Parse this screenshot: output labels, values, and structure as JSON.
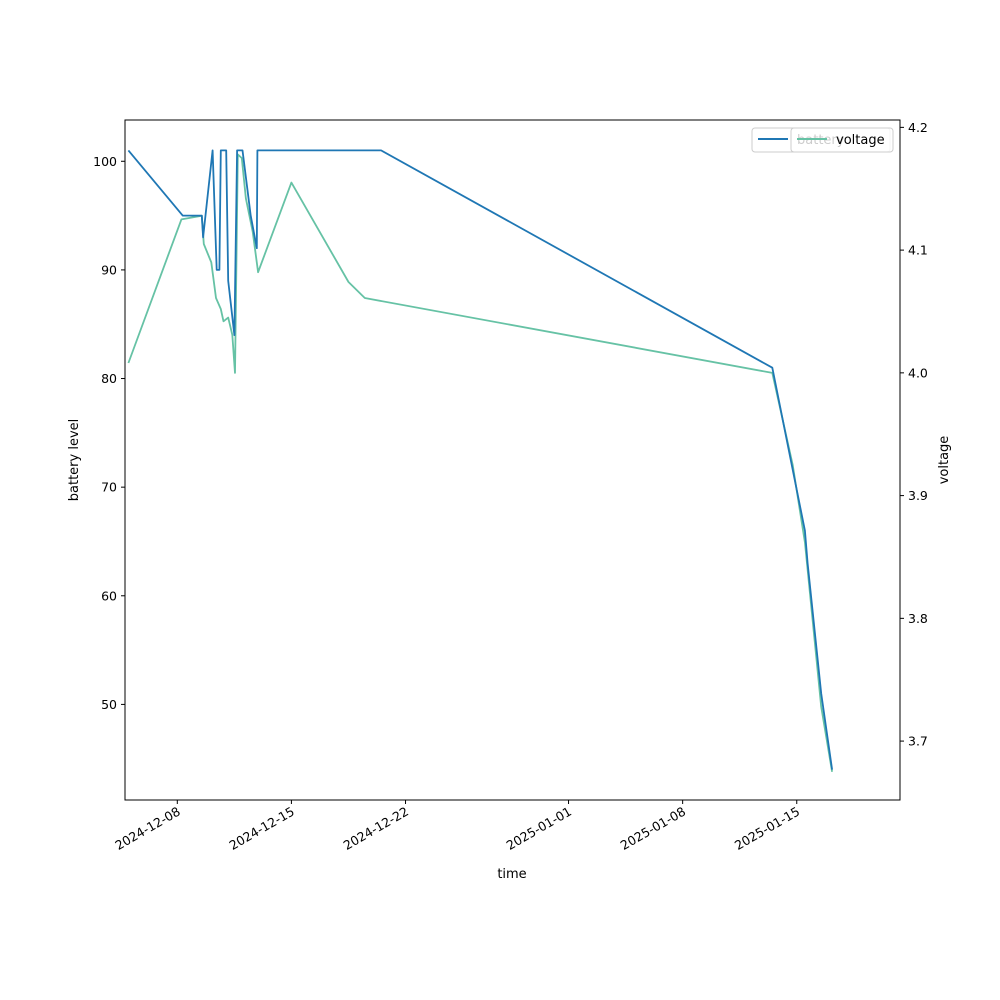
{
  "chart_data": {
    "type": "line",
    "xlabel": "time",
    "ylabel": "battery level",
    "y2label": "voltage",
    "x_ticks": [
      "2024-12-08",
      "2024-12-15",
      "2024-12-22",
      "2025-01-01",
      "2025-01-08",
      "2025-01-15"
    ],
    "y_ticks": [
      50,
      60,
      70,
      80,
      90,
      100
    ],
    "y2_ticks": [
      "3.7",
      "3.8",
      "3.9",
      "4.0",
      "4.1",
      "4.2"
    ],
    "xlim": [
      "2024-12-04T19:00",
      "2025-01-21T08:00"
    ],
    "ylim": [
      41.2,
      103.8
    ],
    "y2lim": [
      3.652,
      4.206
    ],
    "grid": false,
    "legends": [
      {
        "labels": [
          "battery"
        ],
        "colors": [
          "#1f77b4"
        ],
        "placement": "upper right"
      },
      {
        "labels": [
          "voltage"
        ],
        "colors": [
          "#66c2a5"
        ],
        "placement": "upper right"
      }
    ],
    "series": [
      {
        "name": "battery",
        "axis": "left",
        "color": "#1f77b4",
        "points": [
          [
            "2024-12-05T00:00",
            101
          ],
          [
            "2024-12-08T08:00",
            95
          ],
          [
            "2024-12-09T12:00",
            95
          ],
          [
            "2024-12-09T14:00",
            93
          ],
          [
            "2024-12-10T04:00",
            101
          ],
          [
            "2024-12-10T10:00",
            90
          ],
          [
            "2024-12-10T14:00",
            90
          ],
          [
            "2024-12-10T16:00",
            101
          ],
          [
            "2024-12-11T00:00",
            101
          ],
          [
            "2024-12-11T03:00",
            89
          ],
          [
            "2024-12-11T12:00",
            84
          ],
          [
            "2024-12-11T16:00",
            101
          ],
          [
            "2024-12-12T00:00",
            101
          ],
          [
            "2024-12-12T12:00",
            95
          ],
          [
            "2024-12-12T21:00",
            92
          ],
          [
            "2024-12-12T22:00",
            101
          ],
          [
            "2024-12-20T12:00",
            101
          ],
          [
            "2025-01-13T12:00",
            81
          ],
          [
            "2025-01-15T12:00",
            66
          ],
          [
            "2025-01-15T16:00",
            63
          ],
          [
            "2025-01-16T12:00",
            51
          ],
          [
            "2025-01-17T04:00",
            44
          ]
        ]
      },
      {
        "name": "voltage",
        "axis": "right",
        "color": "#66c2a5",
        "points": [
          [
            "2024-12-05T00:00",
            4.008
          ],
          [
            "2024-12-08T06:00",
            4.125
          ],
          [
            "2024-12-09T12:00",
            4.128
          ],
          [
            "2024-12-09T15:00",
            4.105
          ],
          [
            "2024-12-10T02:00",
            4.09
          ],
          [
            "2024-12-10T09:00",
            4.061
          ],
          [
            "2024-12-10T16:00",
            4.052
          ],
          [
            "2024-12-10T20:00",
            4.042
          ],
          [
            "2024-12-11T03:00",
            4.045
          ],
          [
            "2024-12-11T09:00",
            4.031
          ],
          [
            "2024-12-11T13:00",
            4.0
          ],
          [
            "2024-12-11T17:00",
            4.178
          ],
          [
            "2024-12-11T23:00",
            4.175
          ],
          [
            "2024-12-12T05:00",
            4.142
          ],
          [
            "2024-12-12T15:00",
            4.115
          ],
          [
            "2024-12-12T23:00",
            4.082
          ],
          [
            "2024-12-15T00:00",
            4.155
          ],
          [
            "2024-12-18T12:00",
            4.074
          ],
          [
            "2024-12-19T12:00",
            4.061
          ],
          [
            "2025-01-13T12:00",
            4.0
          ],
          [
            "2025-01-14T18:00",
            3.925
          ],
          [
            "2025-01-15T12:00",
            3.862
          ],
          [
            "2025-01-16T12:00",
            3.728
          ],
          [
            "2025-01-17T04:00",
            3.675
          ]
        ]
      }
    ]
  }
}
